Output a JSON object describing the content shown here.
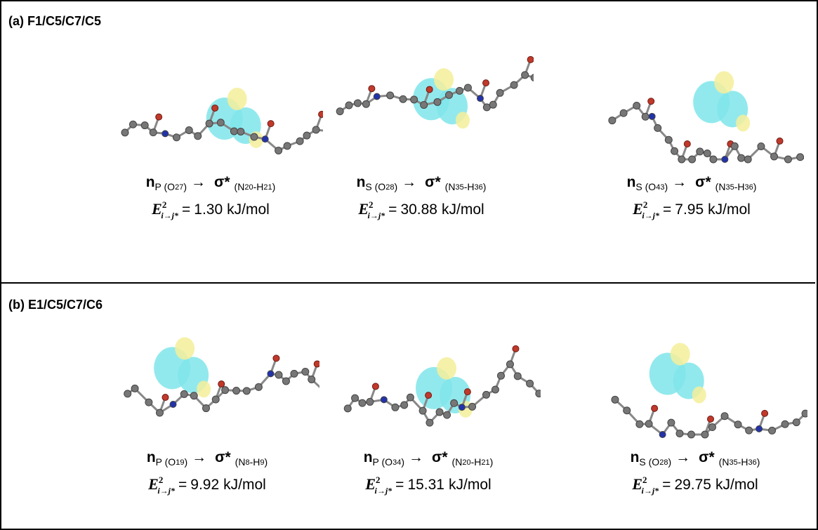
{
  "arrow": "→",
  "equals": "=",
  "unit": "kJ/mol",
  "energy_symbol": {
    "main": "E",
    "sup": "2",
    "sub": "i→j*"
  },
  "panels": [
    {
      "label": "(a) F1/C5/C7/C5",
      "items": [
        {
          "transition": [
            {
              "main": "n"
            },
            {
              "sub": "P (O"
            },
            {
              "subsub": "27"
            },
            {
              "sub": ")"
            },
            {
              "arrow": "→"
            },
            {
              "main": "σ*"
            },
            {
              "sub": "(N"
            },
            {
              "subsub": "20"
            },
            {
              "sub": "-H"
            },
            {
              "subsub": "21"
            },
            {
              "sub": ")"
            }
          ],
          "energy": "1.30"
        },
        {
          "transition": [
            {
              "main": "n"
            },
            {
              "sub": "S (O"
            },
            {
              "subsub": "28"
            },
            {
              "sub": ")"
            },
            {
              "arrow": "→"
            },
            {
              "main": "σ*"
            },
            {
              "sub": "(N"
            },
            {
              "subsub": "35"
            },
            {
              "sub": "-H"
            },
            {
              "subsub": "36"
            },
            {
              "sub": ")"
            }
          ],
          "energy": "30.88"
        },
        {
          "transition": [
            {
              "main": "n"
            },
            {
              "sub": "S (O"
            },
            {
              "subsub": "43"
            },
            {
              "sub": ")"
            },
            {
              "arrow": "→"
            },
            {
              "main": "σ*"
            },
            {
              "sub": "(N"
            },
            {
              "subsub": "35"
            },
            {
              "sub": "-H"
            },
            {
              "subsub": "36"
            },
            {
              "sub": ")"
            }
          ],
          "energy": "7.95"
        }
      ]
    },
    {
      "label": "(b) E1/C5/C7/C6",
      "items": [
        {
          "transition": [
            {
              "main": "n"
            },
            {
              "sub": "P (O"
            },
            {
              "subsub": "19"
            },
            {
              "sub": ")"
            },
            {
              "arrow": "→"
            },
            {
              "main": "σ*"
            },
            {
              "sub": "(N"
            },
            {
              "subsub": "8"
            },
            {
              "sub": "-H"
            },
            {
              "subsub": "9"
            },
            {
              "sub": ")"
            }
          ],
          "energy": "9.92"
        },
        {
          "transition": [
            {
              "main": "n"
            },
            {
              "sub": "P (O"
            },
            {
              "subsub": "34"
            },
            {
              "sub": ")"
            },
            {
              "arrow": "→"
            },
            {
              "main": "σ*"
            },
            {
              "sub": "(N"
            },
            {
              "subsub": "20"
            },
            {
              "sub": "-H"
            },
            {
              "subsub": "21"
            },
            {
              "sub": ")"
            }
          ],
          "energy": "15.31"
        },
        {
          "transition": [
            {
              "main": "n"
            },
            {
              "sub": "S (O"
            },
            {
              "subsub": "28"
            },
            {
              "sub": ")"
            },
            {
              "arrow": "→"
            },
            {
              "main": "σ*"
            },
            {
              "sub": "(N"
            },
            {
              "subsub": "35"
            },
            {
              "sub": "-H"
            },
            {
              "subsub": "36"
            },
            {
              "sub": ")"
            }
          ],
          "energy": "29.75"
        }
      ]
    }
  ]
}
